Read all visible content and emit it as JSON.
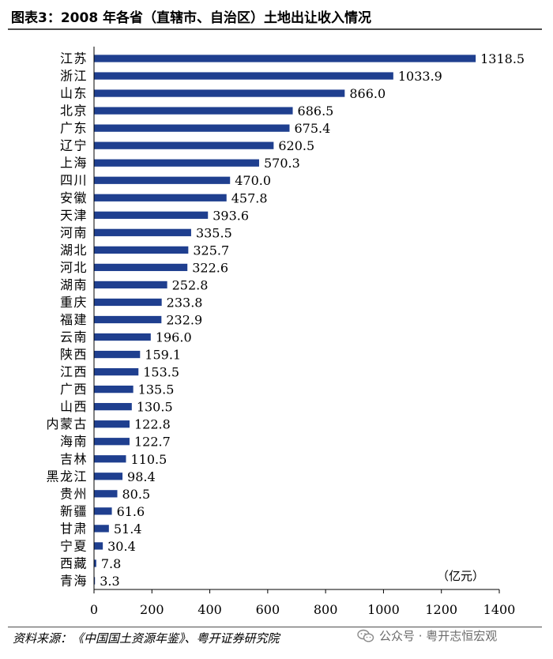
{
  "header": {
    "title": "图表3：2008 年各省（直辖市、自治区）土地出让收入情况"
  },
  "chart_data": {
    "type": "bar",
    "orientation": "horizontal",
    "unit_label": "（亿元）",
    "categories": [
      "江苏",
      "浙江",
      "山东",
      "北京",
      "广东",
      "辽宁",
      "上海",
      "四川",
      "安徽",
      "天津",
      "河南",
      "湖北",
      "河北",
      "湖南",
      "重庆",
      "福建",
      "云南",
      "陕西",
      "江西",
      "广西",
      "山西",
      "内蒙古",
      "海南",
      "吉林",
      "黑龙江",
      "贵州",
      "新疆",
      "甘肃",
      "宁夏",
      "西藏",
      "青海"
    ],
    "values": [
      1318.5,
      1033.9,
      866.0,
      686.5,
      675.4,
      620.5,
      570.3,
      470.0,
      457.8,
      393.6,
      335.5,
      325.7,
      322.6,
      252.8,
      233.8,
      232.9,
      196.0,
      159.1,
      153.5,
      135.5,
      130.5,
      122.8,
      122.7,
      110.5,
      98.4,
      80.5,
      61.6,
      51.4,
      30.4,
      7.8,
      3.3
    ],
    "value_labels": [
      "1318.5",
      "1033.9",
      "866.0",
      "686.5",
      "675.4",
      "620.5",
      "570.3",
      "470.0",
      "457.8",
      "393.6",
      "335.5",
      "325.7",
      "322.6",
      "252.8",
      "233.8",
      "232.9",
      "196.0",
      "159.1",
      "153.5",
      "135.5",
      "130.5",
      "122.8",
      "122.7",
      "110.5",
      "98.4",
      "80.5",
      "61.6",
      "51.4",
      "30.4",
      "7.8",
      "3.3"
    ],
    "xticks": [
      "0",
      "200",
      "400",
      "600",
      "800",
      "1000",
      "1200",
      "1400"
    ],
    "xlim": [
      0,
      1400
    ],
    "grid": false,
    "bar_color": "#1f3f8f"
  },
  "footer": {
    "source": "资料来源：《中国国土资源年鉴》、粤开证券研究院",
    "watermark": "公众号 · 粤开志恒宏观"
  }
}
